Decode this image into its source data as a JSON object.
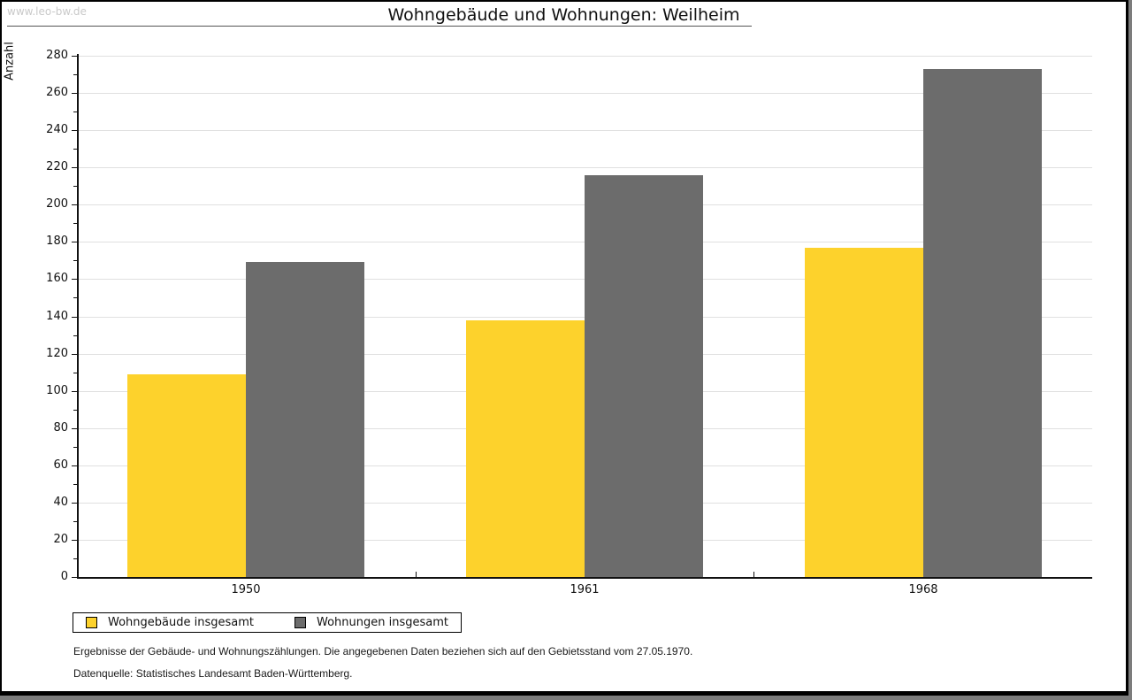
{
  "watermark": "www.leo-bw.de",
  "header": {
    "title": "Wohngebäude und Wohnungen: Weilheim"
  },
  "chart_data": {
    "type": "bar",
    "title": "Wohngebäude und Wohnungen: Weilheim",
    "xlabel": "",
    "ylabel": "Anzahl",
    "categories": [
      "1950",
      "1961",
      "1968"
    ],
    "series": [
      {
        "name": "Wohngebäude insgesamt",
        "color": "#FDD22C",
        "values": [
          109,
          138,
          177
        ]
      },
      {
        "name": "Wohnungen insgesamt",
        "color": "#6C6C6C",
        "values": [
          169,
          216,
          273
        ]
      }
    ],
    "ylim": [
      0,
      280
    ],
    "y_tick_step": 20,
    "y_minor_tick_step": 10,
    "grid": true,
    "legend_position": "bottom-left"
  },
  "colors": {
    "bar_yellow": "#FDD22C",
    "bar_gray": "#6C6C6C",
    "gridline": "#E0E0E0",
    "axis": "#111111",
    "watermark": "#C9C9C9",
    "frame_shadow": "#7C7C7C"
  },
  "notes": [
    "Ergebnisse der Gebäude- und Wohnungszählungen. Die angegebenen Daten beziehen sich auf den Gebietsstand vom 27.05.1970.",
    "Datenquelle: Statistisches Landesamt Baden-Württemberg."
  ]
}
